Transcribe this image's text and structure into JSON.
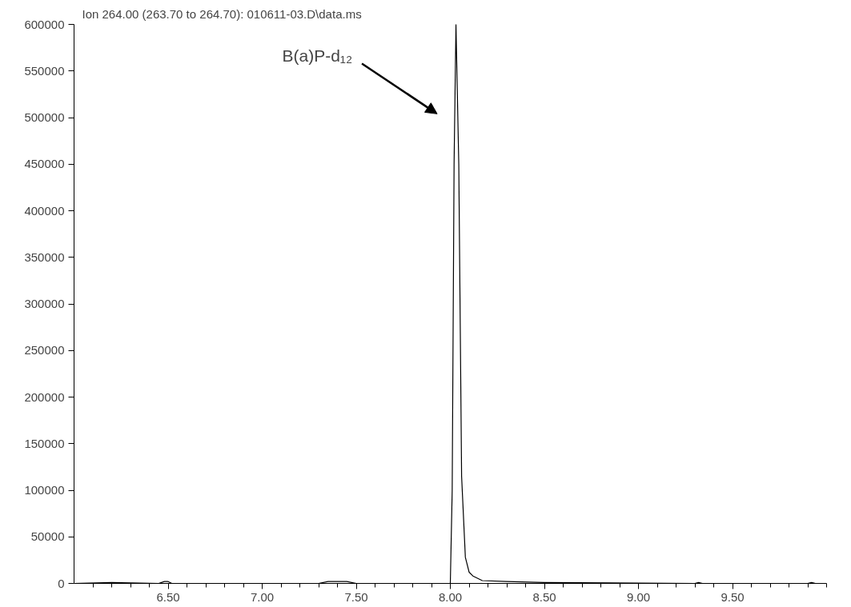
{
  "chart_data": {
    "type": "line",
    "title": "Ion 264.00 (263.70 to 264.70): 010611-03.D\\data.ms",
    "x": [
      6.0,
      6.2,
      6.45,
      6.48,
      6.5,
      6.52,
      7.0,
      7.3,
      7.35,
      7.45,
      7.5,
      8.0,
      8.01,
      8.02,
      8.03,
      8.045,
      8.06,
      8.08,
      8.1,
      8.12,
      8.17,
      8.3,
      8.5,
      9.3,
      9.32,
      9.34,
      9.9,
      9.92,
      9.94,
      9.98
    ],
    "series": [
      {
        "color": "#000000",
        "values": [
          0,
          1000,
          0,
          2000,
          2000,
          0,
          0,
          0,
          2000,
          2000,
          0,
          0,
          100000,
          450000,
          600000,
          450000,
          115000,
          28000,
          12000,
          8000,
          3000,
          2000,
          1000,
          0,
          1000,
          0,
          0,
          1000,
          0,
          0
        ]
      }
    ],
    "xlim": [
      6.0,
      10.0
    ],
    "ylim": [
      0,
      600000
    ],
    "xticks": [
      {
        "value": 6.1,
        "label": null
      },
      {
        "value": 6.2,
        "label": null
      },
      {
        "value": 6.3,
        "label": null
      },
      {
        "value": 6.4,
        "label": null
      },
      {
        "value": 6.5,
        "label": "6.50"
      },
      {
        "value": 6.6,
        "label": null
      },
      {
        "value": 6.7,
        "label": null
      },
      {
        "value": 6.8,
        "label": null
      },
      {
        "value": 6.9,
        "label": null
      },
      {
        "value": 7.0,
        "label": "7.00"
      },
      {
        "value": 7.1,
        "label": null
      },
      {
        "value": 7.2,
        "label": null
      },
      {
        "value": 7.3,
        "label": null
      },
      {
        "value": 7.4,
        "label": null
      },
      {
        "value": 7.5,
        "label": "7.50"
      },
      {
        "value": 7.6,
        "label": null
      },
      {
        "value": 7.7,
        "label": null
      },
      {
        "value": 7.8,
        "label": null
      },
      {
        "value": 7.9,
        "label": null
      },
      {
        "value": 8.0,
        "label": "8.00"
      },
      {
        "value": 8.1,
        "label": null
      },
      {
        "value": 8.2,
        "label": null
      },
      {
        "value": 8.3,
        "label": null
      },
      {
        "value": 8.4,
        "label": null
      },
      {
        "value": 8.5,
        "label": "8.50"
      },
      {
        "value": 8.6,
        "label": null
      },
      {
        "value": 8.7,
        "label": null
      },
      {
        "value": 8.8,
        "label": null
      },
      {
        "value": 8.9,
        "label": null
      },
      {
        "value": 9.0,
        "label": "9.00"
      },
      {
        "value": 9.1,
        "label": null
      },
      {
        "value": 9.2,
        "label": null
      },
      {
        "value": 9.3,
        "label": null
      },
      {
        "value": 9.4,
        "label": null
      },
      {
        "value": 9.5,
        "label": "9.50"
      },
      {
        "value": 9.6,
        "label": null
      },
      {
        "value": 9.7,
        "label": null
      },
      {
        "value": 9.8,
        "label": null
      },
      {
        "value": 9.9,
        "label": null
      },
      {
        "value": 10.0,
        "label": null
      }
    ],
    "yticks": [
      0,
      50000,
      100000,
      150000,
      200000,
      250000,
      300000,
      350000,
      400000,
      450000,
      500000,
      550000,
      600000
    ],
    "annotations": [
      "B(a)P-d₁₂"
    ],
    "grid": false,
    "marker": "none",
    "line_style": "solid"
  }
}
